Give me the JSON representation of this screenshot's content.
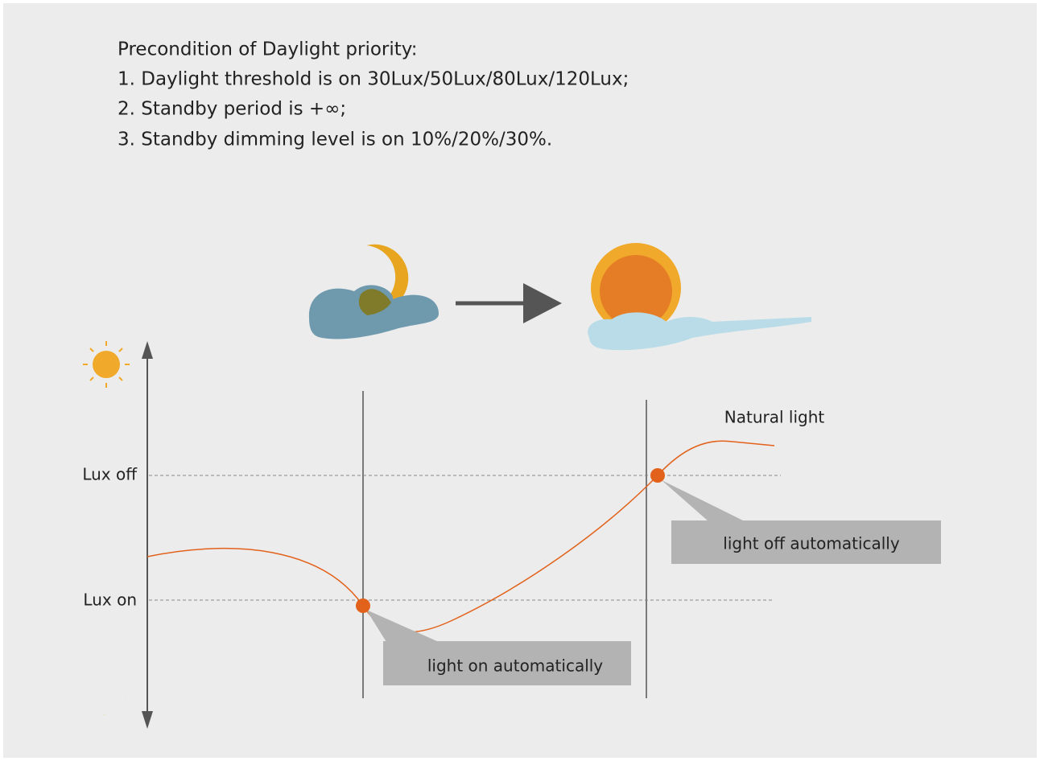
{
  "precondition": {
    "title": "Precondition of Daylight priority:",
    "items": [
      "1. Daylight threshold is on 30Lux/50Lux/80Lux/120Lux;",
      "2. Standby period is +∞;",
      "3. Standby dimming level is on 10%/20%/30%."
    ]
  },
  "diagram": {
    "levels": [
      "Lux off",
      "Lux on"
    ],
    "curve_label": "Natural light",
    "callouts": [
      "light off automatically",
      "light on automatically"
    ]
  }
}
